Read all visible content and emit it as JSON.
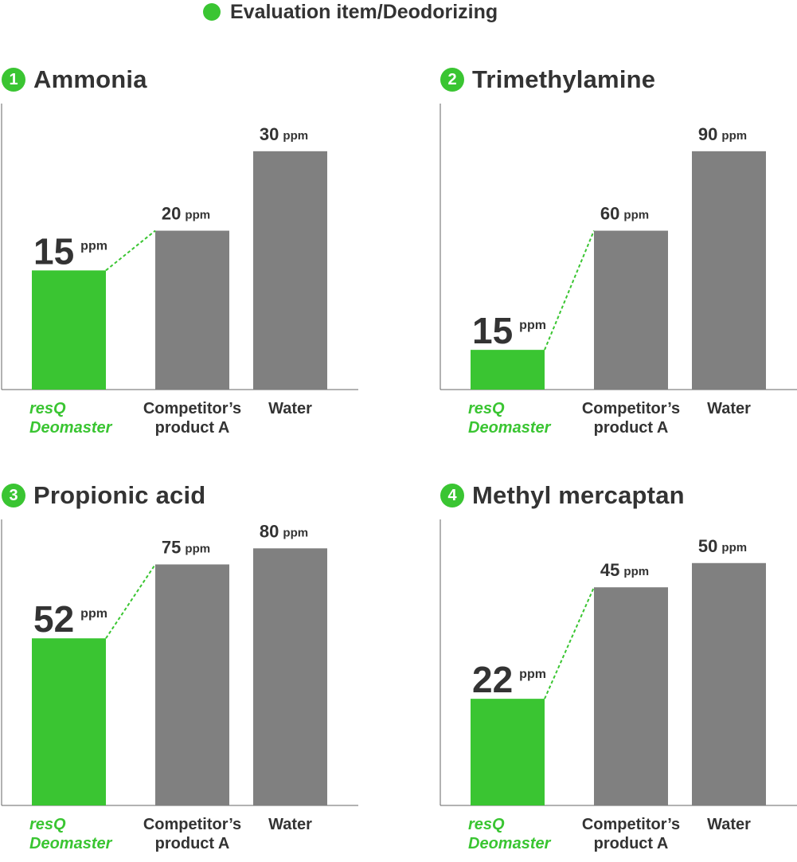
{
  "header": {
    "label": "Evaluation item/Deodorizing"
  },
  "colors": {
    "accent": "#3ac532",
    "bar_gray": "#808080",
    "text": "#333333",
    "axis": "#666666"
  },
  "unit": "ppm",
  "chart_data": [
    {
      "type": "bar",
      "number": "1",
      "title": "Ammonia",
      "categories": [
        "resQ Deomaster",
        "Competitor’s product A",
        "Water"
      ],
      "category_lines": [
        [
          "resQ",
          "Deomaster"
        ],
        [
          "Competitor’s",
          "product A"
        ],
        [
          "Water"
        ]
      ],
      "values": [
        15,
        20,
        30
      ],
      "value_labels": [
        "15",
        "20",
        "30"
      ],
      "ylim": [
        0,
        36
      ]
    },
    {
      "type": "bar",
      "number": "2",
      "title": "Trimethylamine",
      "categories": [
        "resQ Deomaster",
        "Competitor’s product A",
        "Water"
      ],
      "category_lines": [
        [
          "resQ",
          "Deomaster"
        ],
        [
          "Competitor’s",
          "product A"
        ],
        [
          "Water"
        ]
      ],
      "values": [
        15,
        60,
        90
      ],
      "value_labels": [
        "15",
        "60",
        "90"
      ],
      "ylim": [
        0,
        108
      ]
    },
    {
      "type": "bar",
      "number": "3",
      "title": "Propionic acid",
      "categories": [
        "resQ Deomaster",
        "Competitor’s product A",
        "Water"
      ],
      "category_lines": [
        [
          "resQ",
          "Deomaster"
        ],
        [
          "Competitor’s",
          "product A"
        ],
        [
          "Water"
        ]
      ],
      "values": [
        52,
        75,
        80
      ],
      "value_labels": [
        "52",
        "75",
        "80"
      ],
      "ylim": [
        0,
        89
      ]
    },
    {
      "type": "bar",
      "number": "4",
      "title": "Methyl mercaptan",
      "categories": [
        "resQ Deomaster",
        "Competitor’s product A",
        "Water"
      ],
      "category_lines": [
        [
          "resQ",
          "Deomaster"
        ],
        [
          "Competitor’s",
          "product A"
        ],
        [
          "Water"
        ]
      ],
      "values": [
        22,
        45,
        50
      ],
      "value_labels": [
        "22",
        "45",
        "50"
      ],
      "ylim": [
        0,
        59
      ]
    }
  ]
}
